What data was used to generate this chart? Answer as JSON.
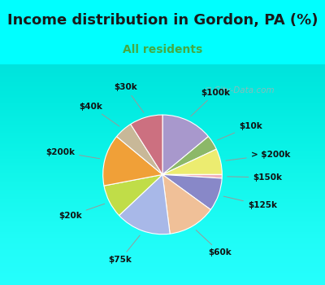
{
  "title": "Income distribution in Gordon, PA (%)",
  "subtitle": "All residents",
  "title_color": "#1a1a1a",
  "subtitle_color": "#44aa44",
  "background_color": "#00FFFF",
  "chart_bg_color": "#e0f5ee",
  "labels": [
    "$100k",
    "$10k",
    "> $200k",
    "$150k",
    "$125k",
    "$60k",
    "$75k",
    "$20k",
    "$200k",
    "$40k",
    "$30k"
  ],
  "values": [
    14,
    4,
    7,
    1,
    9,
    13,
    15,
    9,
    14,
    5,
    9
  ],
  "colors": [
    "#a898cc",
    "#8cb868",
    "#ecec70",
    "#f0b0bc",
    "#8888c8",
    "#f0c098",
    "#a8b8e8",
    "#c0dd48",
    "#f0a038",
    "#c8b898",
    "#cc7080"
  ],
  "label_fontsize": 7.5,
  "title_fontsize": 13,
  "subtitle_fontsize": 10,
  "startangle": 90,
  "line_color": "#999999"
}
